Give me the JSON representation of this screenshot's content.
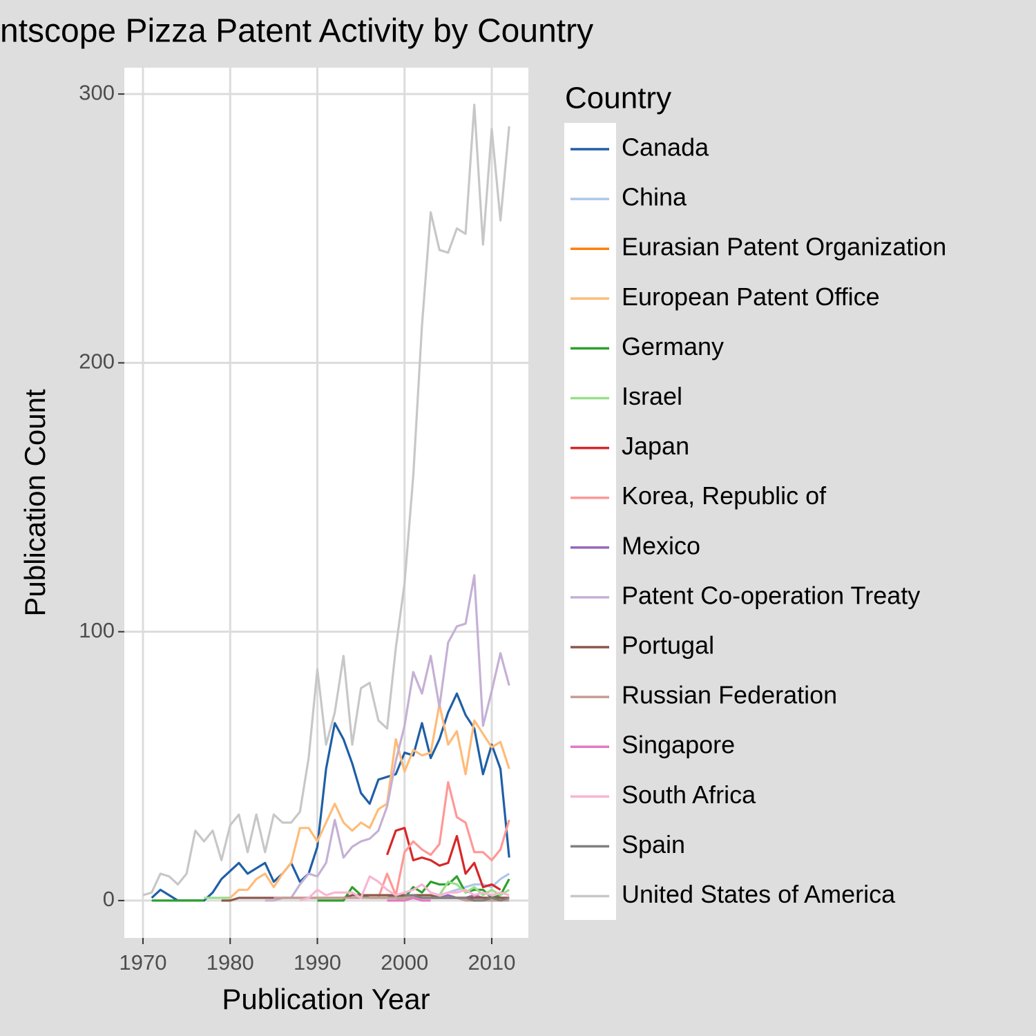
{
  "chart_data": {
    "type": "line",
    "title": "ntscope Pizza Patent Activity by Country",
    "x_label": "Publication Year",
    "y_label": "Publication Count",
    "legend_title": "Country",
    "xlim": [
      1967.86,
      2014.2
    ],
    "ylim": [
      -13.9,
      309.8
    ],
    "xticks": [
      1970,
      1980,
      1990,
      2000,
      2010
    ],
    "yticks": [
      0,
      100,
      200,
      300
    ],
    "grid": true,
    "legend": "right",
    "x": [
      1970,
      1971,
      1972,
      1973,
      1974,
      1975,
      1976,
      1977,
      1978,
      1979,
      1980,
      1981,
      1982,
      1983,
      1984,
      1985,
      1986,
      1987,
      1988,
      1989,
      1990,
      1991,
      1992,
      1993,
      1994,
      1995,
      1996,
      1997,
      1998,
      1999,
      2000,
      2001,
      2002,
      2003,
      2004,
      2005,
      2006,
      2007,
      2008,
      2009,
      2010,
      2011,
      2012
    ],
    "series": [
      {
        "name": "Canada",
        "color": "#1f5fa6",
        "values": [
          null,
          1,
          4,
          2,
          0,
          0,
          0,
          0,
          3,
          8,
          11,
          14,
          10,
          12,
          14,
          7,
          10,
          14,
          7,
          10,
          20,
          49,
          66,
          60,
          51,
          40,
          36,
          45,
          46,
          47,
          55,
          54,
          66,
          53,
          60,
          70,
          77,
          69,
          64,
          47,
          58,
          49,
          16
        ]
      },
      {
        "name": "China",
        "color": "#aec7e8",
        "values": [
          null,
          null,
          null,
          null,
          null,
          null,
          null,
          null,
          null,
          null,
          null,
          null,
          null,
          null,
          null,
          null,
          null,
          null,
          null,
          null,
          null,
          null,
          null,
          null,
          null,
          null,
          null,
          null,
          null,
          null,
          null,
          null,
          null,
          null,
          2,
          3,
          4,
          5,
          6,
          6,
          5,
          8,
          10
        ]
      },
      {
        "name": "Eurasian Patent Organization",
        "color": "#ff7f0e",
        "values": [
          null,
          null,
          null,
          null,
          null,
          null,
          null,
          null,
          null,
          null,
          null,
          null,
          null,
          null,
          null,
          null,
          null,
          null,
          null,
          null,
          null,
          null,
          null,
          null,
          null,
          null,
          null,
          null,
          null,
          null,
          null,
          null,
          null,
          1,
          1,
          1,
          1,
          1,
          1,
          1,
          1,
          1,
          1
        ]
      },
      {
        "name": "European Patent Office",
        "color": "#ffbb78",
        "values": [
          null,
          null,
          null,
          null,
          null,
          null,
          null,
          null,
          null,
          1,
          1,
          4,
          4,
          8,
          10,
          5,
          10,
          14,
          27,
          27,
          22,
          29,
          36,
          29,
          26,
          29,
          27,
          34,
          36,
          60,
          48,
          56,
          54,
          55,
          73,
          58,
          63,
          47,
          67,
          62,
          57,
          59,
          49
        ]
      },
      {
        "name": "Germany",
        "color": "#2ca02c",
        "values": [
          null,
          0,
          0,
          0,
          0,
          0,
          0,
          0,
          null,
          null,
          null,
          null,
          null,
          null,
          null,
          null,
          null,
          null,
          null,
          null,
          0,
          0,
          0,
          0,
          5,
          2,
          1,
          1,
          1,
          2,
          1,
          5,
          3,
          7,
          6,
          6,
          9,
          3,
          4,
          4,
          1,
          2,
          8
        ]
      },
      {
        "name": "Israel",
        "color": "#98df8a",
        "values": [
          null,
          null,
          null,
          null,
          null,
          null,
          null,
          1,
          1,
          1,
          1,
          null,
          null,
          null,
          null,
          null,
          null,
          null,
          null,
          null,
          null,
          null,
          null,
          null,
          null,
          null,
          null,
          null,
          null,
          0,
          1,
          2,
          1,
          1,
          2,
          7,
          6,
          3,
          5,
          2,
          4,
          2,
          4
        ]
      },
      {
        "name": "Japan",
        "color": "#d62728",
        "values": [
          null,
          null,
          null,
          null,
          null,
          null,
          null,
          null,
          null,
          null,
          null,
          null,
          null,
          null,
          null,
          null,
          null,
          null,
          null,
          null,
          null,
          null,
          null,
          null,
          null,
          null,
          null,
          null,
          17,
          26,
          27,
          15,
          16,
          15,
          13,
          14,
          24,
          10,
          14,
          5,
          6,
          4,
          null
        ]
      },
      {
        "name": "Korea, Republic of",
        "color": "#ff9896",
        "values": [
          null,
          null,
          null,
          null,
          null,
          null,
          null,
          null,
          null,
          null,
          null,
          null,
          null,
          null,
          null,
          null,
          null,
          null,
          null,
          null,
          null,
          null,
          null,
          null,
          null,
          null,
          null,
          1,
          10,
          2,
          18,
          22,
          19,
          17,
          21,
          44,
          31,
          29,
          18,
          18,
          15,
          19,
          30
        ]
      },
      {
        "name": "Mexico",
        "color": "#9467bd",
        "values": [
          null,
          null,
          null,
          null,
          null,
          null,
          null,
          null,
          null,
          null,
          null,
          null,
          null,
          null,
          null,
          null,
          null,
          null,
          null,
          null,
          null,
          null,
          null,
          null,
          null,
          null,
          null,
          null,
          1,
          1,
          1,
          1,
          1,
          1,
          1,
          2,
          1,
          1,
          2,
          1,
          1,
          1,
          1
        ]
      },
      {
        "name": "Patent Co-operation Treaty",
        "color": "#c5b0d5",
        "values": [
          null,
          null,
          null,
          null,
          null,
          null,
          null,
          null,
          null,
          null,
          null,
          null,
          null,
          null,
          0,
          0,
          1,
          1,
          6,
          10,
          9,
          14,
          30,
          16,
          20,
          22,
          23,
          26,
          35,
          52,
          65,
          85,
          77,
          91,
          72,
          96,
          102,
          103,
          121,
          65,
          78,
          92,
          80
        ]
      },
      {
        "name": "Portugal",
        "color": "#8c564b",
        "values": [
          null,
          null,
          null,
          null,
          null,
          null,
          null,
          null,
          null,
          0,
          0,
          1,
          1,
          1,
          1,
          1,
          1,
          1,
          1,
          1,
          1,
          1,
          1,
          1,
          2,
          2,
          2,
          2,
          2,
          2,
          2,
          2,
          2,
          2,
          1,
          1,
          1,
          1,
          1,
          1,
          1,
          1,
          1
        ]
      },
      {
        "name": "Russian Federation",
        "color": "#c49c94",
        "values": [
          null,
          null,
          null,
          null,
          null,
          null,
          null,
          null,
          null,
          null,
          null,
          null,
          null,
          null,
          null,
          1,
          1,
          1,
          1,
          1,
          1,
          1,
          1,
          1,
          1,
          1,
          1,
          1,
          1,
          1,
          1,
          1,
          1,
          1,
          1,
          1,
          1,
          0,
          0,
          0,
          0,
          0,
          0
        ]
      },
      {
        "name": "Singapore",
        "color": "#e377c2",
        "values": [
          null,
          null,
          null,
          null,
          null,
          null,
          null,
          null,
          null,
          null,
          null,
          null,
          null,
          null,
          null,
          null,
          null,
          null,
          null,
          null,
          null,
          null,
          null,
          null,
          null,
          null,
          null,
          null,
          0,
          0,
          0,
          1,
          0,
          0,
          null,
          null,
          null,
          null,
          null,
          null,
          null,
          null,
          null
        ]
      },
      {
        "name": "South Africa",
        "color": "#f7b6d2",
        "values": [
          null,
          null,
          null,
          null,
          null,
          null,
          null,
          null,
          null,
          null,
          null,
          null,
          null,
          null,
          null,
          null,
          null,
          null,
          0,
          1,
          4,
          2,
          3,
          3,
          3,
          1,
          9,
          7,
          4,
          2,
          3,
          4,
          6,
          3,
          2,
          3,
          3,
          4,
          2,
          3,
          2,
          3,
          2
        ]
      },
      {
        "name": "Spain",
        "color": "#7f7f7f",
        "values": [
          null,
          null,
          null,
          null,
          null,
          null,
          null,
          null,
          null,
          null,
          null,
          null,
          null,
          null,
          null,
          null,
          null,
          null,
          null,
          null,
          null,
          null,
          null,
          null,
          null,
          null,
          null,
          null,
          null,
          null,
          2,
          2,
          1,
          1,
          1,
          1,
          1,
          1,
          0,
          0,
          1,
          0,
          1
        ]
      },
      {
        "name": "United States of America",
        "color": "#c7c7c7",
        "values": [
          2,
          3,
          10,
          9,
          6,
          10,
          26,
          22,
          26,
          15,
          28,
          32,
          18,
          32,
          18,
          32,
          29,
          29,
          33,
          53,
          86,
          58,
          70,
          91,
          58,
          79,
          81,
          67,
          64,
          94,
          118,
          158,
          214,
          256,
          242,
          241,
          250,
          248,
          296,
          244,
          287,
          253,
          288
        ]
      }
    ]
  }
}
